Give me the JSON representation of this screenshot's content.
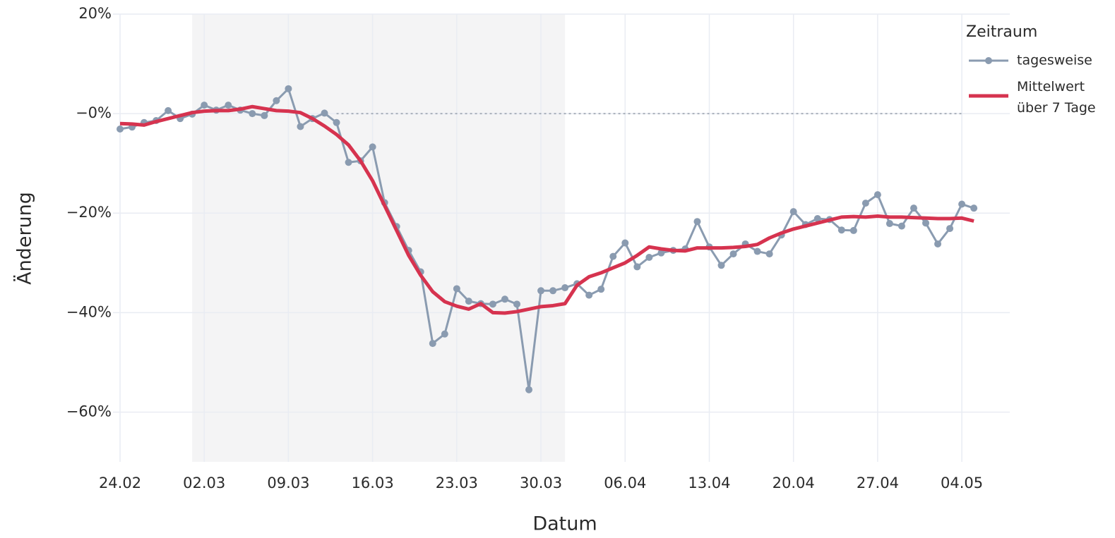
{
  "chart_data": {
    "type": "line",
    "x_label": "Datum",
    "y_label": "Änderung",
    "legend_title": "Zeitraum",
    "legend": "top-right",
    "grid": true,
    "x": [
      "24.02",
      "25.02",
      "26.02",
      "27.02",
      "28.02",
      "29.02",
      "01.03",
      "02.03",
      "03.03",
      "04.03",
      "05.03",
      "06.03",
      "07.03",
      "08.03",
      "09.03",
      "10.03",
      "11.03",
      "12.03",
      "13.03",
      "14.03",
      "15.03",
      "16.03",
      "17.03",
      "18.03",
      "19.03",
      "20.03",
      "21.03",
      "22.03",
      "23.03",
      "24.03",
      "25.03",
      "26.03",
      "27.03",
      "28.03",
      "29.03",
      "30.03",
      "31.03",
      "01.04",
      "02.04",
      "03.04",
      "04.04",
      "05.04",
      "06.04",
      "07.04",
      "08.04",
      "09.04",
      "10.04",
      "11.04",
      "12.04",
      "13.04",
      "14.04",
      "15.04",
      "16.04",
      "17.04",
      "18.04",
      "19.04",
      "20.04",
      "21.04",
      "22.04",
      "23.04",
      "24.04",
      "25.04",
      "26.04",
      "27.04",
      "28.04",
      "29.04",
      "30.04",
      "01.05",
      "02.05",
      "03.05",
      "04.05",
      "05.05"
    ],
    "xticks": [
      "24.02",
      "02.03",
      "09.03",
      "16.03",
      "23.03",
      "30.03",
      "06.04",
      "13.04",
      "20.04",
      "27.04",
      "04.05"
    ],
    "ylim": [
      -70,
      20
    ],
    "yticks": [
      {
        "value": 20,
        "label": "20%"
      },
      {
        "value": 0,
        "label": "−0%"
      },
      {
        "value": -20,
        "label": "−20%"
      },
      {
        "value": -40,
        "label": "−40%"
      },
      {
        "value": -60,
        "label": "−60%"
      }
    ],
    "highlight": {
      "from": "01.03",
      "to": "01.04",
      "color": "#f4f4f5"
    },
    "reference_line": {
      "y": 0,
      "from": "13.03",
      "to": "04.05",
      "color": "#a9b0bb"
    },
    "series": [
      {
        "name": "tagesweise",
        "color": "#8a9bb0",
        "markers": true,
        "values": [
          -3.1,
          -2.7,
          -1.8,
          -1.4,
          0.6,
          -1.0,
          -0.1,
          1.7,
          0.7,
          1.7,
          0.7,
          0,
          -0.4,
          2.6,
          5.0,
          -2.6,
          -1.0,
          0.1,
          -1.8,
          -9.8,
          -9.5,
          -6.7,
          -17.9,
          -22.7,
          -27.5,
          -31.8,
          -46.2,
          -44.3,
          -35.2,
          -37.7,
          -38.2,
          -38.3,
          -37.3,
          -38.3,
          -55.5,
          -35.6,
          -35.6,
          -35.0,
          -34.2,
          -36.5,
          -35.3,
          -28.7,
          -26.0,
          -30.8,
          -28.9,
          -28.0,
          -27.5,
          -27.2,
          -21.7,
          -26.8,
          -30.5,
          -28.2,
          -26.2,
          -27.7,
          -28.2,
          -24.4,
          -19.7,
          -22.3,
          -21.1,
          -21.3,
          -23.4,
          -23.5,
          -18.0,
          -16.3,
          -22.1,
          -22.6,
          -19.0,
          -22.0,
          -26.2,
          -23.1,
          -18.2,
          -19.0
        ]
      },
      {
        "name": "Mittelwert über 7 Tage",
        "color": "#d6334f",
        "markers": false,
        "values": [
          -2.0,
          -2.1,
          -2.3,
          -1.6,
          -1.0,
          -0.4,
          0.2,
          0.5,
          0.6,
          0.6,
          0.9,
          1.4,
          1.0,
          0.6,
          0.5,
          0.2,
          -1.0,
          -2.5,
          -4.2,
          -6.3,
          -9.5,
          -13.5,
          -18.5,
          -23.5,
          -28.5,
          -32.5,
          -35.8,
          -37.8,
          -38.7,
          -39.3,
          -38.2,
          -40.0,
          -40.1,
          -39.8,
          -39.3,
          -38.8,
          -38.6,
          -38.2,
          -34.5,
          -32.8,
          -32.0,
          -31.0,
          -30.0,
          -28.5,
          -26.8,
          -27.2,
          -27.5,
          -27.6,
          -27.0,
          -27.0,
          -27.0,
          -26.9,
          -26.7,
          -26.3,
          -25.0,
          -24.0,
          -23.2,
          -22.6,
          -22.0,
          -21.4,
          -20.8,
          -20.7,
          -20.8,
          -20.6,
          -20.8,
          -20.8,
          -20.9,
          -21.0,
          -21.1,
          -21.1,
          -21.0,
          -21.6
        ]
      }
    ]
  }
}
